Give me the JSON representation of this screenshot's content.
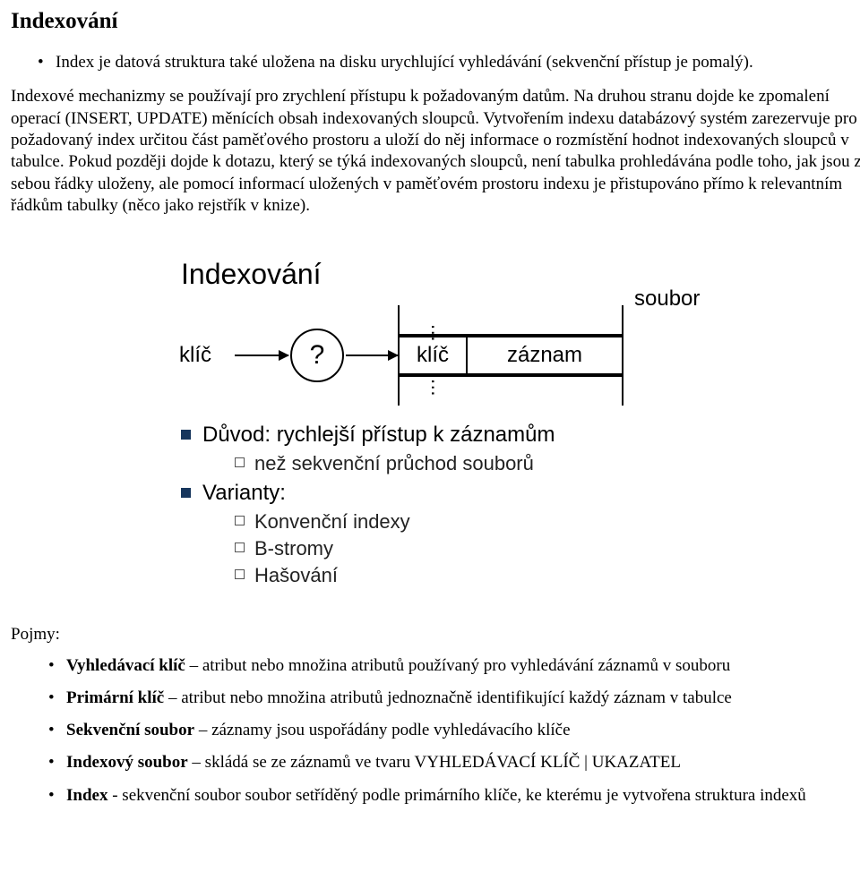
{
  "page": {
    "title": "Indexování"
  },
  "intro": {
    "bullet": "Index je datová struktura také uložena na disku urychlující vyhledávání (sekvenční přístup je pomalý)."
  },
  "paragraph": "Indexové mechanizmy se používají pro zrychlení přístupu k požadovaným datům. Na druhou stranu dojde ke zpomalení operací (INSERT, UPDATE) měnících obsah indexovaných sloupců. Vytvořením indexu databázový systém zarezervuje pro požadovaný index určitou část paměťového prostoru a uloží do něj informace o rozmístění hodnot indexovaných sloupců v tabulce. Pokud později dojde k dotazu, který se týká indexovaných sloupců, není tabulka prohledávána podle toho, jak jsou za sebou řádky uloženy, ale pomocí informací uložených v paměťovém prostoru indexu je přistupováno přímo k relevantním řádkům tabulky (něco jako rejstřík v knize).",
  "diagram": {
    "title": "Indexování",
    "left_key": "klíč",
    "question": "?",
    "file_label": "soubor",
    "cell_key": "klíč",
    "cell_record": "záznam",
    "colors": {
      "square_marker": "#17365d",
      "line": "#000000",
      "background": "#ffffff"
    },
    "bullets": {
      "reason": "Důvod: rychlejší přístup k záznamům",
      "reason_sub": "než sekvenční průchod souborů",
      "variants": "Varianty:",
      "variant_items": [
        "Konvenční indexy",
        "B-stromy",
        "Hašování"
      ]
    }
  },
  "terms_label": "Pojmy:",
  "terms": [
    {
      "name": "Vyhledávací klíč",
      "sep": " – ",
      "desc": "atribut nebo množina atributů používaný pro vyhledávání záznamů v souboru"
    },
    {
      "name": "Primární klíč",
      "sep": " – ",
      "desc": "atribut nebo množina atributů jednoznačně identifikující každý záznam v tabulce"
    },
    {
      "name": "Sekvenční soubor",
      "sep": " – ",
      "desc": "záznamy jsou uspořádány podle vyhledávacího klíče"
    },
    {
      "name": "Indexový soubor",
      "sep": " – ",
      "desc": "skládá se ze záznamů ve tvaru VYHLEDÁVACÍ KLÍČ | UKAZATEL"
    },
    {
      "name": "Index",
      "sep": " - ",
      "desc": "sekvenční soubor  soubor setříděný podle primárního klíče, ke kterému je vytvořena struktura indexů"
    }
  ]
}
